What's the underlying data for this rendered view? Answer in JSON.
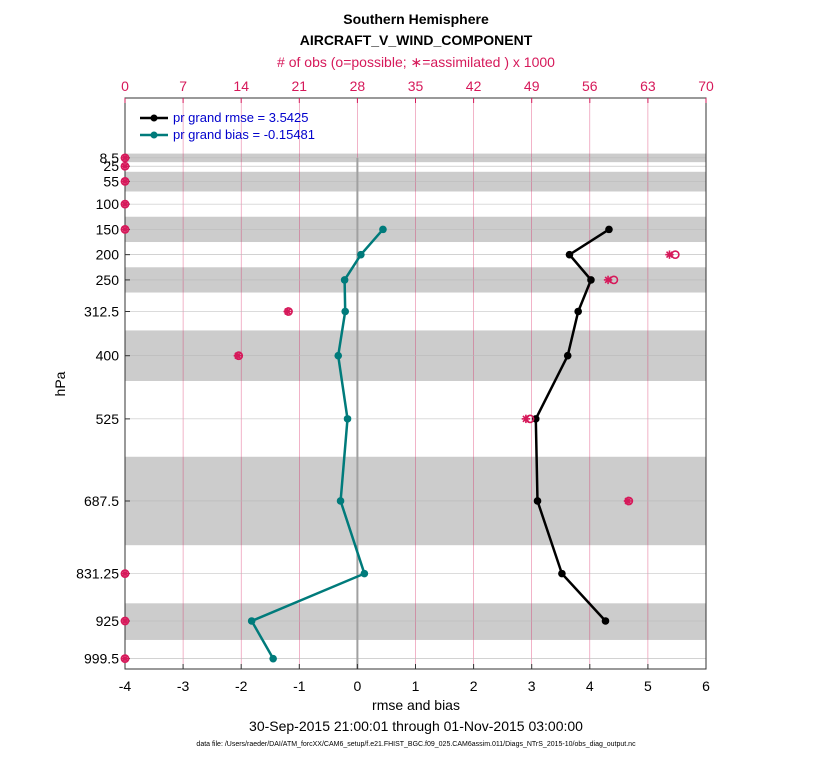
{
  "chart_data": {
    "type": "line",
    "title": "Southern Hemisphere",
    "subtitle": "AIRCRAFT_V_WIND_COMPONENT",
    "top_axis_label": "# of obs (o=possible; ∗=assimilated ) x 1000",
    "xlabel": "rmse and bias",
    "ylabel": "hPa",
    "date_range": "30-Sep-2015 21:00:01 through 01-Nov-2015 03:00:00",
    "footnote": "data file: /Users/raeder/DAI/ATM_forcXX/CAM6_setup/f.e21.FHIST_BGC.f09_025.CAM6assim.011/Diags_NTrS_2015-10/obs_diag_output.nc",
    "xlim": [
      -4,
      6
    ],
    "xticks": [
      "-4",
      "-3",
      "-2",
      "-1",
      "0",
      "1",
      "2",
      "3",
      "4",
      "5",
      "6"
    ],
    "top_xlim": [
      0,
      70
    ],
    "top_xticks": [
      "0",
      "7",
      "14",
      "21",
      "28",
      "35",
      "42",
      "49",
      "56",
      "63",
      "70"
    ],
    "ylim": [
      1020,
      -110
    ],
    "y_reversed": true,
    "levels": [
      8.5,
      25,
      55,
      100,
      150,
      200,
      250,
      312.5,
      400,
      525,
      687.5,
      831.25,
      925,
      999.5
    ],
    "level_labels": [
      "8.5",
      "25",
      "55",
      "100",
      "150",
      "200",
      "250",
      "312.5",
      "400",
      "525",
      "687.5",
      "831.25",
      "925",
      "999.5"
    ],
    "shaded_bands": [
      [
        0,
        17
      ],
      [
        36,
        75
      ],
      [
        125,
        175
      ],
      [
        225,
        275
      ],
      [
        350,
        450
      ],
      [
        600,
        775
      ],
      [
        890,
        962.5
      ]
    ],
    "grid": true,
    "legend_position": "top-left",
    "series": [
      {
        "name": "pr grand rmse = 3.5425",
        "color": "#000000",
        "points": [
          {
            "level": 150,
            "value": 4.33
          },
          {
            "level": 200,
            "value": 3.65
          },
          {
            "level": 250,
            "value": 4.02
          },
          {
            "level": 312.5,
            "value": 3.8
          },
          {
            "level": 400,
            "value": 3.62
          },
          {
            "level": 525,
            "value": 3.07
          },
          {
            "level": 687.5,
            "value": 3.1
          },
          {
            "level": 831.25,
            "value": 3.52
          },
          {
            "level": 925,
            "value": 4.27
          }
        ]
      },
      {
        "name": "pr grand bias = -0.15481",
        "color": "#007b7b",
        "points": [
          {
            "level": 150,
            "value": 0.44
          },
          {
            "level": 200,
            "value": 0.06
          },
          {
            "level": 250,
            "value": -0.22
          },
          {
            "level": 312.5,
            "value": -0.21
          },
          {
            "level": 400,
            "value": -0.33
          },
          {
            "level": 525,
            "value": -0.17
          },
          {
            "level": 687.5,
            "value": -0.29
          },
          {
            "level": 831.25,
            "value": 0.12
          },
          {
            "level": 925,
            "value": -1.82
          },
          {
            "level": 999.5,
            "value": -1.45
          }
        ]
      }
    ],
    "obs_counts": {
      "color": "#d6195a",
      "points": [
        {
          "level": 8.5,
          "possible": 0,
          "assimilated": 0
        },
        {
          "level": 25,
          "possible": 0,
          "assimilated": 0
        },
        {
          "level": 55,
          "possible": 0,
          "assimilated": 0
        },
        {
          "level": 100,
          "possible": 0,
          "assimilated": 0
        },
        {
          "level": 150,
          "possible": 0,
          "assimilated": 0
        },
        {
          "level": 200,
          "possible": 66.3,
          "assimilated": 65.6
        },
        {
          "level": 250,
          "possible": 58.9,
          "assimilated": 58.2
        },
        {
          "level": 312.5,
          "possible": 19.7,
          "assimilated": 19.6
        },
        {
          "level": 400,
          "possible": 13.7,
          "assimilated": 13.6
        },
        {
          "level": 525,
          "possible": 48.8,
          "assimilated": 48.3
        },
        {
          "level": 687.5,
          "possible": 60.7,
          "assimilated": 60.6
        },
        {
          "level": 831.25,
          "possible": 0,
          "assimilated": 0
        },
        {
          "level": 925,
          "possible": 0,
          "assimilated": 0
        },
        {
          "level": 999.5,
          "possible": 0,
          "assimilated": 0
        }
      ]
    }
  }
}
